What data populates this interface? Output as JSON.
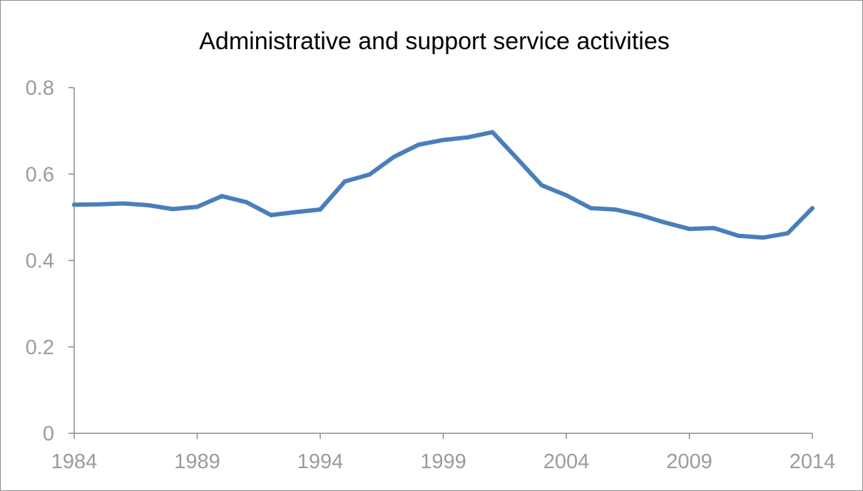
{
  "chart_data": {
    "type": "line",
    "title": "Administrative and support service activities",
    "xlabel": "",
    "ylabel": "",
    "x": [
      1984,
      1985,
      1986,
      1987,
      1988,
      1989,
      1990,
      1991,
      1992,
      1993,
      1994,
      1995,
      1996,
      1997,
      1998,
      1999,
      2000,
      2001,
      2002,
      2003,
      2004,
      2005,
      2006,
      2007,
      2008,
      2009,
      2010,
      2011,
      2012,
      2013,
      2014
    ],
    "series": [
      {
        "name": "",
        "color": "#4a7ebb",
        "values": [
          0.529,
          0.53,
          0.532,
          0.528,
          0.519,
          0.524,
          0.549,
          0.535,
          0.505,
          0.512,
          0.518,
          0.583,
          0.599,
          0.64,
          0.668,
          0.679,
          0.685,
          0.697,
          0.636,
          0.574,
          0.551,
          0.521,
          0.518,
          0.505,
          0.488,
          0.473,
          0.475,
          0.457,
          0.453,
          0.463,
          0.521
        ]
      }
    ],
    "xlim": [
      1984,
      2014
    ],
    "ylim": [
      0,
      0.8
    ],
    "x_ticks": [
      "1984",
      "1989",
      "1994",
      "1999",
      "2004",
      "2009",
      "2014"
    ],
    "y_ticks": [
      "0",
      "0.2",
      "0.4",
      "0.6",
      "0.8"
    ],
    "grid": false,
    "legend": "none"
  },
  "colors": {
    "axis": "#8c8c8c",
    "tick_label": "#9b9b9b",
    "title": "#000000",
    "line": "#4a7ebb"
  }
}
